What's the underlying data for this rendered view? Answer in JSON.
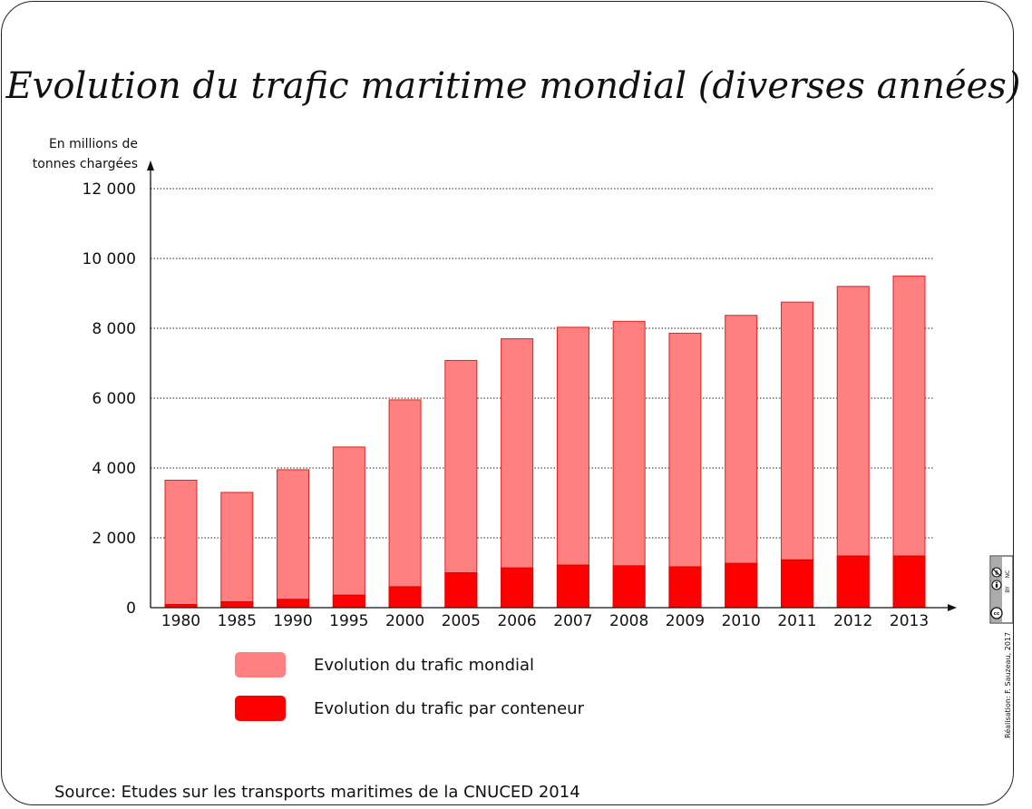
{
  "chart_data": {
    "type": "bar",
    "stacked": false,
    "overlay": true,
    "title": "Evolution du trafic maritime mondial (diverses années)",
    "ylabel": "En millions de tonnes chargées",
    "xlabel": "",
    "ylim": [
      0,
      12000
    ],
    "yticks": [
      0,
      2000,
      4000,
      6000,
      8000,
      10000,
      12000
    ],
    "ytick_labels": [
      "0",
      "2 000",
      "4 000",
      "6 000",
      "8 000",
      "10 000",
      "12 000"
    ],
    "grid": true,
    "categories": [
      "1980",
      "1985",
      "1990",
      "1995",
      "2000",
      "2005",
      "2006",
      "2007",
      "2008",
      "2009",
      "2010",
      "2011",
      "2012",
      "2013"
    ],
    "series": [
      {
        "name": "Evolution du trafic mondial",
        "color": "#ff8080",
        "values": [
          3650,
          3300,
          3950,
          4600,
          5950,
          7080,
          7700,
          8030,
          8200,
          7860,
          8370,
          8750,
          9200,
          9500
        ]
      },
      {
        "name": "Evolution du trafic par conteneur",
        "color": "#ff0000",
        "values": [
          90,
          170,
          240,
          360,
          600,
          1000,
          1140,
          1220,
          1200,
          1170,
          1270,
          1370,
          1480,
          1480
        ]
      }
    ],
    "legend_position": "bottom-left"
  },
  "source": "Source: Etudes sur les transports maritimes de la CNUCED 2014",
  "credit": "Réalisation: F. Sauzeau, 2017",
  "license_icon": "cc-by-nc-icon",
  "license_labels": [
    "BY",
    "NC"
  ]
}
